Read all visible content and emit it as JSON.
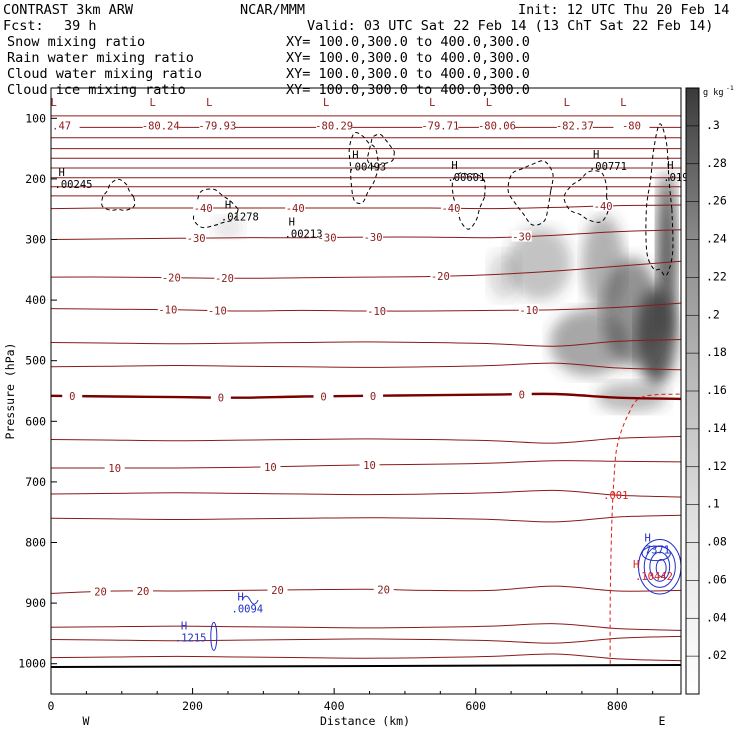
{
  "header": {
    "title_left": "CONTRAST  3km ARW",
    "title_center": "NCAR/MMM",
    "init": "Init: 12 UTC Thu 20 Feb 14",
    "fcst_label": "Fcst:",
    "fcst_value": "39 h",
    "valid": "Valid: 03 UTC Sat 22 Feb 14 (13 ChT Sat 22 Feb 14)"
  },
  "legend": [
    {
      "name": "Snow mixing ratio",
      "xy": "XY= 100.0,300.0 to 400.0,300.0",
      "color": "#000000"
    },
    {
      "name": "Rain water mixing ratio",
      "xy": "XY= 100.0,300.0 to 400.0,300.0",
      "color": "#e01818"
    },
    {
      "name": "Cloud water mixing ratio",
      "xy": "XY= 100.0,300.0 to 400.0,300.0",
      "color": "#1f2fc8"
    },
    {
      "name": "Cloud ice mixing ratio",
      "xy": "XY= 100.0,300.0 to 400.0,300.0",
      "color": "#000000"
    }
  ],
  "colors": {
    "temperature": "#8b1a1a",
    "freezing": "#7a0000",
    "snow": "#000000",
    "rain": "#e01818",
    "cloud_water": "#1f2fc8",
    "cloud_ice": "#000000",
    "shade_high": "#3c3c3c"
  },
  "chart_data": {
    "type": "heatmap",
    "xlabel": "Distance (km)",
    "ylabel": "Pressure (hPa)",
    "x_range": [
      0,
      890
    ],
    "y_range": [
      1050,
      50
    ],
    "x_ticks": [
      0,
      200,
      400,
      600,
      800
    ],
    "y_ticks": [
      100,
      200,
      300,
      400,
      500,
      600,
      700,
      800,
      900,
      1000
    ],
    "end_labels": {
      "left": "W",
      "right": "E"
    },
    "colorbar": {
      "unit_main": "g kg",
      "unit_exp": "-1",
      "levels": [
        ".3",
        ".28",
        ".26",
        ".24",
        ".22",
        ".2",
        ".18",
        ".16",
        ".14",
        ".12",
        ".1",
        ".08",
        ".06",
        ".04",
        ".02"
      ],
      "range": [
        0,
        0.32
      ]
    },
    "isotherms": [
      {
        "temp": 20,
        "pressure": [
          884,
          880,
          880,
          879,
          878,
          877,
          879,
          879,
          872,
          880,
          879
        ],
        "labels": [
          {
            "text": "20",
            "x": 70
          },
          {
            "text": "20",
            "x": 130
          },
          {
            "text": "20",
            "x": 320
          },
          {
            "text": "20",
            "x": 470
          }
        ]
      },
      {
        "temp": 10,
        "pressure": [
          677,
          677,
          677,
          676,
          674,
          672,
          671,
          669,
          665,
          666,
          667
        ],
        "labels": [
          {
            "text": "10",
            "x": 90
          },
          {
            "text": "10",
            "x": 310
          },
          {
            "text": "10",
            "x": 450
          }
        ]
      },
      {
        "temp": 0,
        "pressure": [
          558,
          559,
          560,
          561,
          559,
          558,
          557,
          556,
          555,
          561,
          563
        ],
        "labels": [
          {
            "text": "0",
            "x": 30
          },
          {
            "text": "0",
            "x": 240
          },
          {
            "text": "0",
            "x": 385
          },
          {
            "text": "0",
            "x": 455
          },
          {
            "text": "0",
            "x": 665
          }
        ]
      },
      {
        "temp": -10,
        "pressure": [
          414,
          415,
          416,
          418,
          417,
          418,
          418,
          417,
          416,
          412,
          405
        ],
        "labels": [
          {
            "text": "-10",
            "x": 165
          },
          {
            "text": "-10",
            "x": 235
          },
          {
            "text": "-10",
            "x": 460
          },
          {
            "text": "-10",
            "x": 675
          }
        ]
      },
      {
        "temp": -20,
        "pressure": [
          362,
          362,
          363,
          364,
          363,
          362,
          361,
          358,
          352,
          344,
          336
        ],
        "labels": [
          {
            "text": "-20",
            "x": 170
          },
          {
            "text": "-20",
            "x": 245
          },
          {
            "text": "-20",
            "x": 550
          }
        ]
      },
      {
        "temp": -30,
        "pressure": [
          300,
          299,
          298,
          297,
          297,
          296,
          296,
          297,
          293,
          287,
          284
        ],
        "labels": [
          {
            "text": "-30",
            "x": 205
          },
          {
            "text": "-30",
            "x": 390
          },
          {
            "text": "-30",
            "x": 455
          },
          {
            "text": "-30",
            "x": 665
          }
        ]
      },
      {
        "temp": -40,
        "pressure": [
          249,
          248,
          248,
          248,
          248,
          248,
          248,
          249,
          247,
          244,
          243
        ],
        "labels": [
          {
            "text": "-40",
            "x": 215
          },
          {
            "text": "-40",
            "x": 345
          },
          {
            "text": "-40",
            "x": 565
          },
          {
            "text": "-40",
            "x": 780
          }
        ]
      }
    ],
    "stable_levels": [
      96,
      115,
      132,
      150,
      166,
      182,
      198,
      213,
      228
    ],
    "stratosphere_labels": [
      {
        "text": ".47",
        "x": 15
      },
      {
        "text": "-80.24",
        "x": 155
      },
      {
        "text": "-79.93",
        "x": 235
      },
      {
        "text": "-80.29",
        "x": 400
      },
      {
        "text": "-79.71",
        "x": 550
      },
      {
        "text": "-80.06",
        "x": 630
      },
      {
        "text": "-82.37",
        "x": 740
      },
      {
        "text": "-80",
        "x": 820
      }
    ],
    "maxima": [
      {
        "text": ".00245",
        "x": 5,
        "p": 212
      },
      {
        "text": ".01278",
        "x": 240,
        "p": 265
      },
      {
        "text": ".00213",
        "x": 330,
        "p": 293
      },
      {
        "text": ".00493",
        "x": 420,
        "p": 183
      },
      {
        "text": ".00601",
        "x": 560,
        "p": 200
      },
      {
        "text": ".00771",
        "x": 760,
        "p": 182
      },
      {
        "text": ".019",
        "x": 865,
        "p": 200
      }
    ],
    "cloud_water_maxima": [
      {
        "text": ".1215",
        "x": 175,
        "p": 960
      },
      {
        "text": ".0094",
        "x": 255,
        "p": 912
      },
      {
        "text": ".7371",
        "x": 830,
        "p": 815
      }
    ],
    "rain_labels": [
      {
        "text": ".001",
        "x": 780,
        "p": 722
      },
      {
        "text": ".10442",
        "x": 825,
        "p": 855
      }
    ]
  }
}
